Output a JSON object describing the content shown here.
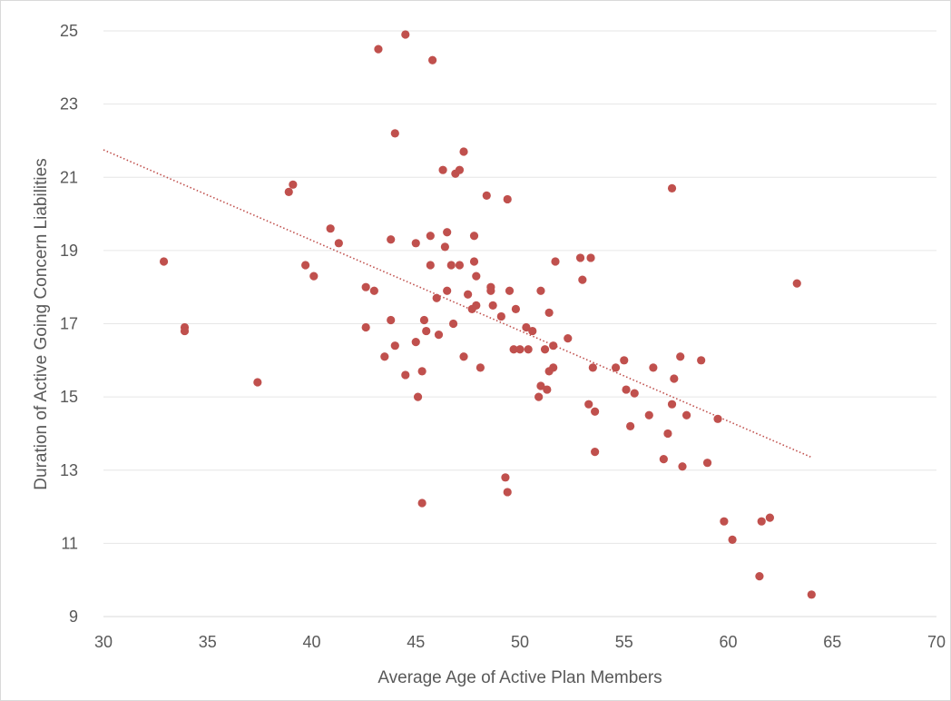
{
  "chart_data": {
    "type": "scatter",
    "title": "",
    "xlabel": "Average Age of Active Plan Members",
    "ylabel": "Duration of Active Going Concern Liabilities",
    "xlim": [
      30,
      70
    ],
    "ylim": [
      9,
      25
    ],
    "x_ticks": [
      30,
      35,
      40,
      45,
      50,
      55,
      60,
      65,
      70
    ],
    "y_ticks": [
      9,
      11,
      13,
      15,
      17,
      19,
      21,
      23,
      25
    ],
    "grid": "horizontal",
    "legend": "none",
    "colors": {
      "points": "#c0504d",
      "trendline": "#c0504d",
      "grid": "#e6e6e6",
      "text": "#595959"
    },
    "trendline": {
      "type": "linear",
      "x_start": 30,
      "y_start": 21.75,
      "x_end": 64,
      "y_end": 13.35
    },
    "series": [
      {
        "points": [
          [
            32.9,
            18.7
          ],
          [
            33.9,
            16.9
          ],
          [
            33.9,
            16.8
          ],
          [
            37.4,
            15.4
          ],
          [
            38.9,
            20.6
          ],
          [
            39.1,
            20.8
          ],
          [
            39.7,
            18.6
          ],
          [
            40.1,
            18.3
          ],
          [
            40.9,
            19.6
          ],
          [
            41.3,
            19.2
          ],
          [
            42.6,
            18.0
          ],
          [
            42.6,
            16.9
          ],
          [
            43.0,
            17.9
          ],
          [
            43.2,
            24.5
          ],
          [
            43.5,
            16.1
          ],
          [
            43.8,
            17.1
          ],
          [
            43.8,
            19.3
          ],
          [
            44.0,
            22.2
          ],
          [
            44.0,
            16.4
          ],
          [
            44.5,
            24.9
          ],
          [
            44.5,
            15.6
          ],
          [
            45.0,
            19.2
          ],
          [
            45.0,
            16.5
          ],
          [
            45.1,
            15.0
          ],
          [
            45.3,
            15.7
          ],
          [
            45.3,
            12.1
          ],
          [
            45.4,
            17.1
          ],
          [
            45.5,
            16.8
          ],
          [
            45.7,
            19.4
          ],
          [
            45.7,
            18.6
          ],
          [
            45.8,
            24.2
          ],
          [
            46.0,
            17.7
          ],
          [
            46.1,
            16.7
          ],
          [
            46.3,
            21.2
          ],
          [
            46.4,
            19.1
          ],
          [
            46.5,
            19.5
          ],
          [
            46.5,
            17.9
          ],
          [
            46.7,
            18.6
          ],
          [
            46.8,
            17.0
          ],
          [
            46.9,
            21.1
          ],
          [
            47.1,
            18.6
          ],
          [
            47.1,
            21.2
          ],
          [
            47.3,
            21.7
          ],
          [
            47.3,
            16.1
          ],
          [
            47.5,
            17.8
          ],
          [
            47.7,
            17.4
          ],
          [
            47.8,
            19.4
          ],
          [
            47.8,
            18.7
          ],
          [
            47.9,
            18.3
          ],
          [
            47.9,
            17.5
          ],
          [
            48.1,
            15.8
          ],
          [
            48.4,
            20.5
          ],
          [
            48.6,
            17.9
          ],
          [
            48.6,
            18.0
          ],
          [
            48.7,
            17.5
          ],
          [
            49.1,
            17.2
          ],
          [
            49.3,
            12.8
          ],
          [
            49.4,
            20.4
          ],
          [
            49.4,
            12.4
          ],
          [
            49.5,
            17.9
          ],
          [
            49.7,
            16.3
          ],
          [
            49.8,
            17.4
          ],
          [
            50.0,
            16.3
          ],
          [
            50.3,
            16.9
          ],
          [
            50.4,
            16.3
          ],
          [
            50.6,
            16.8
          ],
          [
            50.9,
            15.0
          ],
          [
            51.0,
            17.9
          ],
          [
            51.0,
            15.3
          ],
          [
            51.2,
            16.3
          ],
          [
            51.3,
            15.2
          ],
          [
            51.4,
            17.3
          ],
          [
            51.4,
            15.7
          ],
          [
            51.6,
            16.4
          ],
          [
            51.6,
            15.8
          ],
          [
            51.7,
            18.7
          ],
          [
            52.3,
            16.6
          ],
          [
            52.9,
            18.8
          ],
          [
            53.0,
            18.2
          ],
          [
            53.3,
            14.8
          ],
          [
            53.4,
            18.8
          ],
          [
            53.5,
            15.8
          ],
          [
            53.6,
            14.6
          ],
          [
            53.6,
            13.5
          ],
          [
            54.6,
            15.8
          ],
          [
            55.0,
            16.0
          ],
          [
            55.1,
            15.2
          ],
          [
            55.3,
            14.2
          ],
          [
            55.5,
            15.1
          ],
          [
            56.2,
            14.5
          ],
          [
            56.4,
            15.8
          ],
          [
            56.9,
            13.3
          ],
          [
            57.1,
            14.0
          ],
          [
            57.3,
            20.7
          ],
          [
            57.3,
            14.8
          ],
          [
            57.4,
            15.5
          ],
          [
            57.7,
            16.1
          ],
          [
            57.8,
            13.1
          ],
          [
            58.0,
            14.5
          ],
          [
            58.7,
            16.0
          ],
          [
            59.0,
            13.2
          ],
          [
            59.5,
            14.4
          ],
          [
            59.8,
            11.6
          ],
          [
            60.2,
            11.1
          ],
          [
            61.5,
            10.1
          ],
          [
            61.6,
            11.6
          ],
          [
            62.0,
            11.7
          ],
          [
            63.3,
            18.1
          ],
          [
            64.0,
            9.6
          ]
        ]
      }
    ]
  }
}
